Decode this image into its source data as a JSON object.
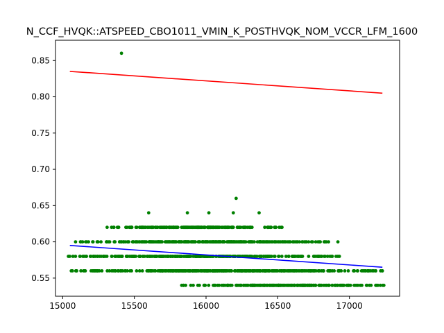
{
  "chart_data": {
    "type": "scatter",
    "title": "N_CCF_HVQK::ATSPEED_CBO1011_VMIN_K_POSTHVQK_NOM_VCCR_LFM_1600",
    "xlabel": "",
    "ylabel": "",
    "xlim": [
      14950,
      17350
    ],
    "ylim": [
      0.525,
      0.878
    ],
    "x_ticks": [
      15000,
      15500,
      16000,
      16500,
      17000
    ],
    "x_tick_labels": [
      "15000",
      "15500",
      "16000",
      "16500",
      "17000"
    ],
    "y_ticks": [
      0.55,
      0.6,
      0.65,
      0.7,
      0.75,
      0.8,
      0.85
    ],
    "y_tick_labels": [
      "0.55",
      "0.60",
      "0.65",
      "0.70",
      "0.75",
      "0.80",
      "0.85"
    ],
    "grid": false,
    "legend": "none",
    "colors": {
      "points": "#008000",
      "upper_line": "#ff0000",
      "lower_line": "#0000ff"
    },
    "series": [
      {
        "kind": "points",
        "bands": [
          {
            "y": 0.54,
            "x_min": 15830,
            "x_max": 17240
          },
          {
            "y": 0.56,
            "x_min": 15060,
            "x_max": 17230
          },
          {
            "y": 0.58,
            "x_min": 15040,
            "x_max": 16930
          },
          {
            "y": 0.6,
            "x_min": 15090,
            "x_max": 16920
          },
          {
            "y": 0.62,
            "x_min": 15310,
            "x_max": 16530
          }
        ],
        "outliers": [
          {
            "x": 15410,
            "y": 0.86
          },
          {
            "x": 16210,
            "y": 0.66
          },
          {
            "x": 15600,
            "y": 0.64
          },
          {
            "x": 15870,
            "y": 0.64
          },
          {
            "x": 16020,
            "y": 0.64
          },
          {
            "x": 16190,
            "y": 0.64
          },
          {
            "x": 16370,
            "y": 0.64
          }
        ]
      },
      {
        "kind": "line",
        "x": [
          15050,
          17230
        ],
        "y": [
          0.835,
          0.805
        ]
      },
      {
        "kind": "line",
        "x": [
          15050,
          17230
        ],
        "y": [
          0.595,
          0.565
        ]
      }
    ]
  }
}
